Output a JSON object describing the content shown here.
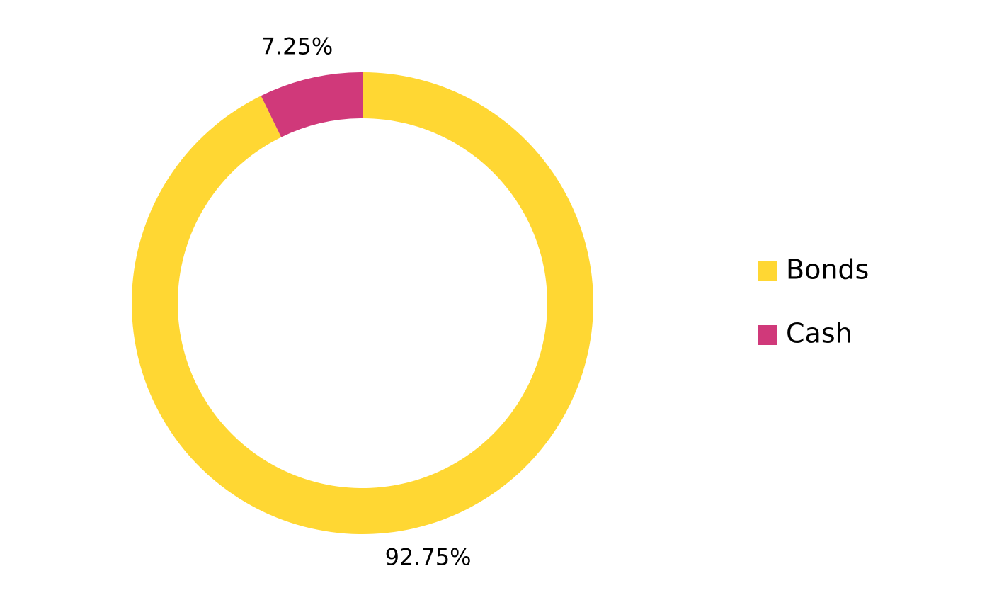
{
  "chart_data": {
    "type": "donut",
    "categories": [
      "Bonds",
      "Cash"
    ],
    "values": [
      92.75,
      7.25
    ],
    "value_labels": [
      "92.75%",
      "7.25%"
    ],
    "colors": [
      "#FFD733",
      "#D0397A"
    ],
    "legend": "right"
  }
}
